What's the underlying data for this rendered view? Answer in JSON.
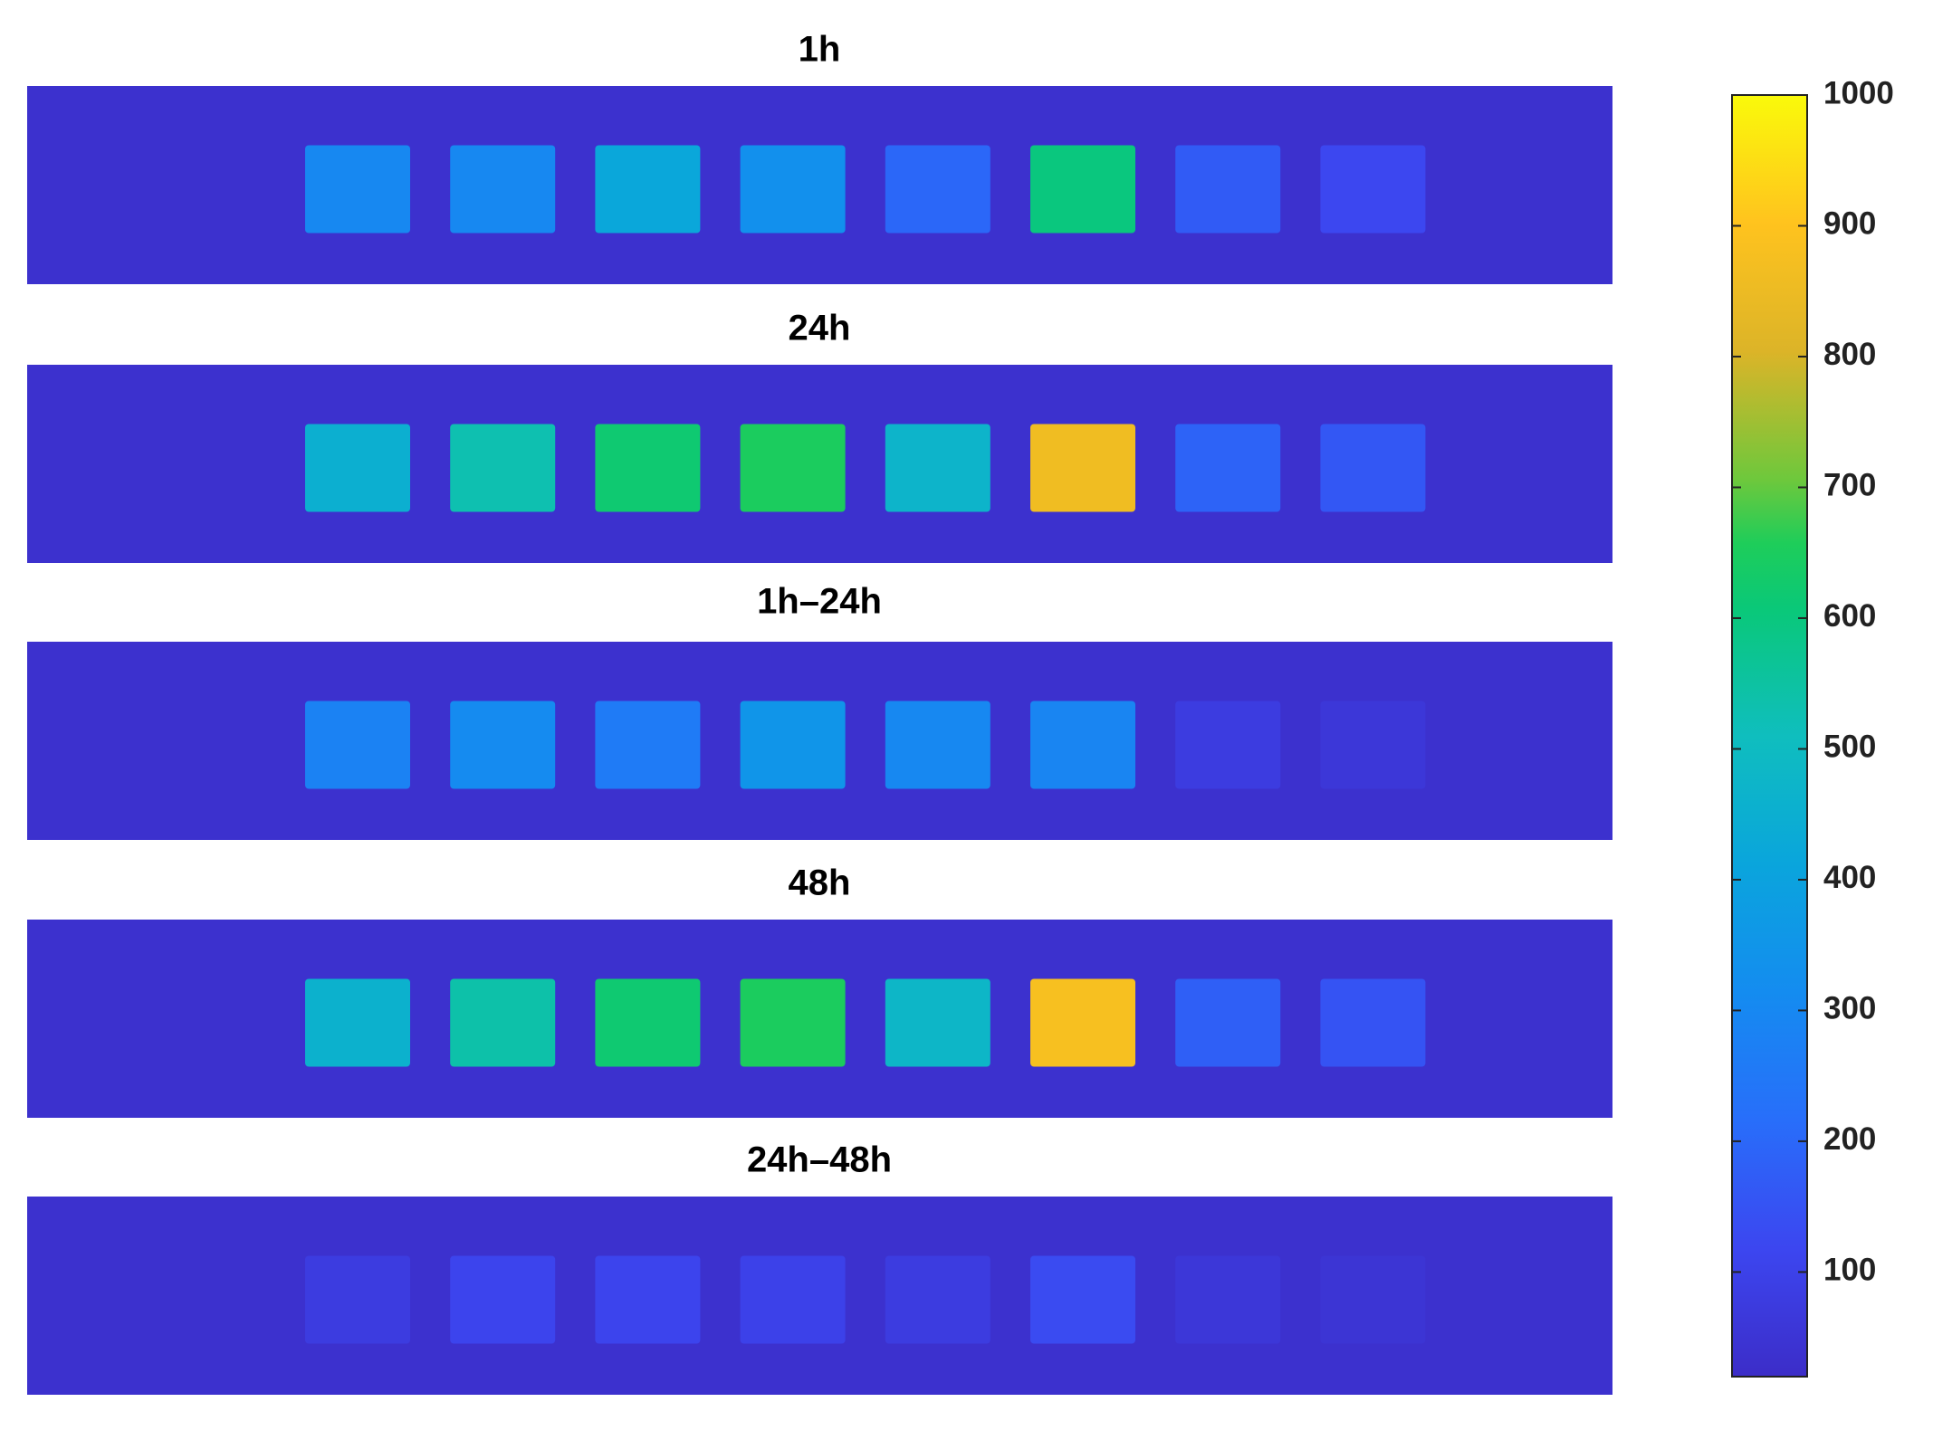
{
  "chart_data": {
    "type": "heatmap",
    "panels": [
      {
        "title": "1h",
        "background": 35,
        "values": [
          300,
          300,
          420,
          330,
          200,
          600,
          170,
          120
        ]
      },
      {
        "title": "24h",
        "background": 35,
        "values": [
          450,
          530,
          620,
          650,
          470,
          860,
          190,
          160
        ]
      },
      {
        "title": "1h–24h",
        "background": 35,
        "values": [
          280,
          310,
          260,
          350,
          300,
          290,
          80,
          60
        ]
      },
      {
        "title": "48h",
        "background": 35,
        "values": [
          460,
          540,
          620,
          650,
          480,
          880,
          180,
          150
        ]
      },
      {
        "title": "24h–48h",
        "background": 35,
        "values": [
          80,
          110,
          110,
          100,
          80,
          130,
          60,
          50
        ]
      }
    ],
    "clim": [
      20,
      1000
    ],
    "cticks": [
      100,
      200,
      300,
      400,
      500,
      600,
      700,
      800,
      900,
      1000
    ],
    "colormap": "parula"
  }
}
